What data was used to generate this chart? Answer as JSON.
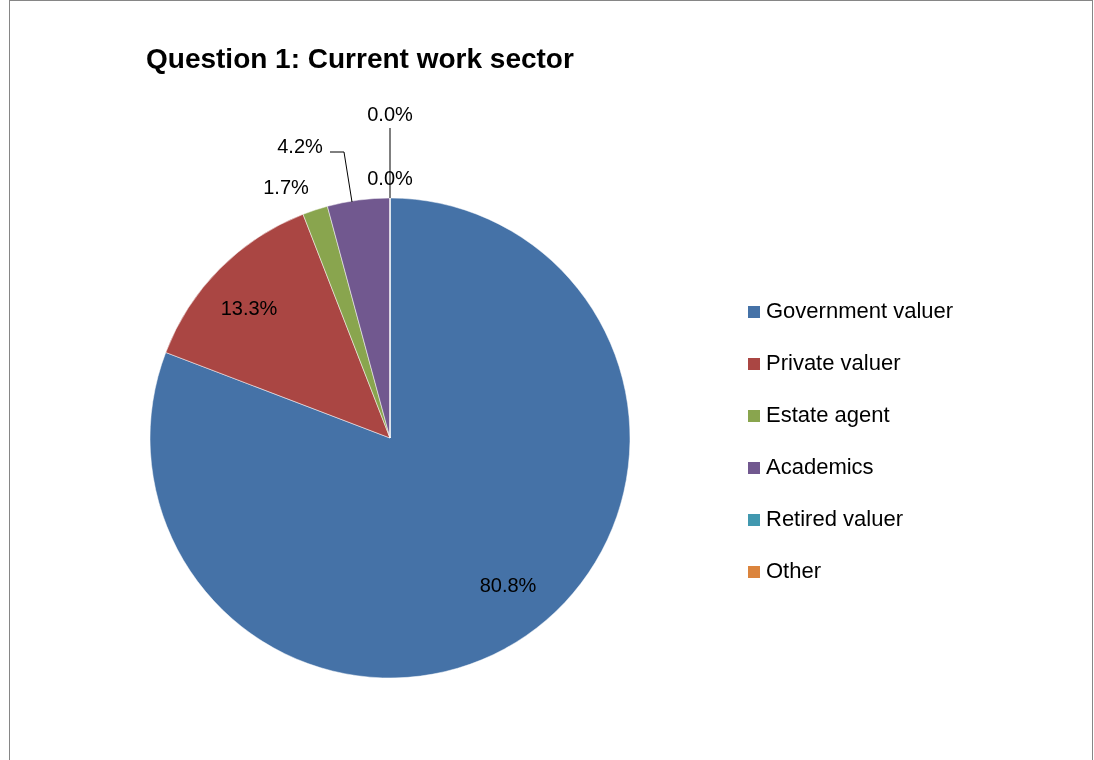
{
  "chart_data": {
    "type": "pie",
    "title": "Question 1: Current work sector",
    "categories": [
      "Government valuer",
      "Private valuer",
      "Estate agent",
      "Academics",
      "Retired valuer",
      "Other"
    ],
    "values": [
      80.8,
      13.3,
      1.7,
      4.2,
      0.0,
      0.0
    ],
    "colors": [
      "#4572a7",
      "#aa4643",
      "#89a54e",
      "#71588f",
      "#4198af",
      "#db843d"
    ],
    "value_labels": [
      "80.8%",
      "13.3%",
      "1.7%",
      "4.2%",
      "0.0%",
      "0.0%"
    ],
    "legend": "right"
  }
}
